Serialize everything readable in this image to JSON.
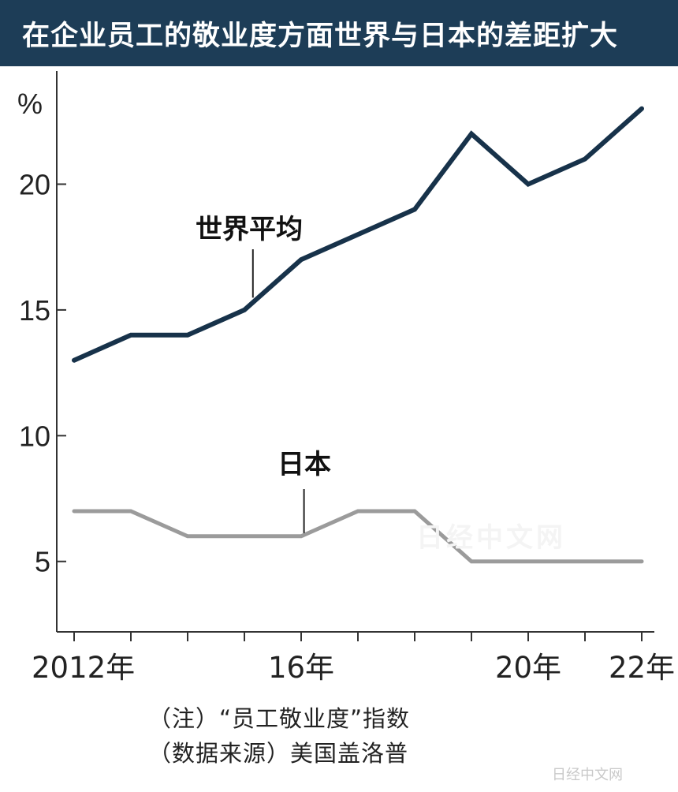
{
  "title": "在企业员工的敬业度方面世界与日本的差距扩大",
  "watermark_text": "日经中文网",
  "corner_watermark": "日经中文网",
  "notes": {
    "line1": "（注）“员工敬业度”指数",
    "line2": "（数据来源）美国盖洛普"
  },
  "colors": {
    "title_bg": "#1d3d57",
    "world_line": "#17324a",
    "japan_line": "#9b9b9b"
  },
  "chart_data": {
    "type": "line",
    "title": "在企业员工的敬业度方面世界与日本的差距扩大",
    "ylabel": "%",
    "ylim": [
      2.2,
      24.5
    ],
    "yticks": [
      5,
      10,
      15,
      20
    ],
    "x": [
      2012,
      2013,
      2014,
      2015,
      2016,
      2017,
      2018,
      2019,
      2020,
      2021,
      2022
    ],
    "xtick_labels": [
      {
        "x": 2012,
        "label": "2012年"
      },
      {
        "x": 2016,
        "label": "16年"
      },
      {
        "x": 2020,
        "label": "20年"
      },
      {
        "x": 2022,
        "label": "22年"
      }
    ],
    "series": [
      {
        "name": "世界平均",
        "values": [
          13,
          14,
          14,
          15,
          17,
          18,
          19,
          22,
          20,
          21,
          23
        ]
      },
      {
        "name": "日本",
        "values": [
          7,
          7,
          6,
          6,
          6,
          7,
          7,
          5,
          5,
          5,
          5
        ]
      }
    ],
    "grid": false,
    "legend": "direct-labels"
  }
}
